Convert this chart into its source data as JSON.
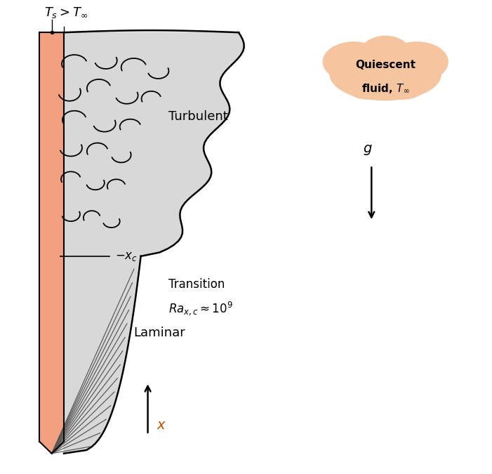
{
  "bg_color": "#ffffff",
  "wall_color": "#f2a080",
  "boundary_fill": "#d8d8d8",
  "cloud_fill": "#f5c5a0",
  "text_Ts_Tinf": "$T_s > T_\\infty$",
  "text_turbulent": "Turbulent",
  "text_laminar": "Laminar",
  "text_transition_line1": "Transition",
  "text_transition_line2": "$Ra_{x,c}\\approx 10^9$",
  "text_xc": "$- x_c$",
  "text_x_arrow": "$x$",
  "text_g": "$g$",
  "text_quiescent_line1": "Quiescent",
  "text_quiescent_line2": "fluid, $T_\\infty$"
}
